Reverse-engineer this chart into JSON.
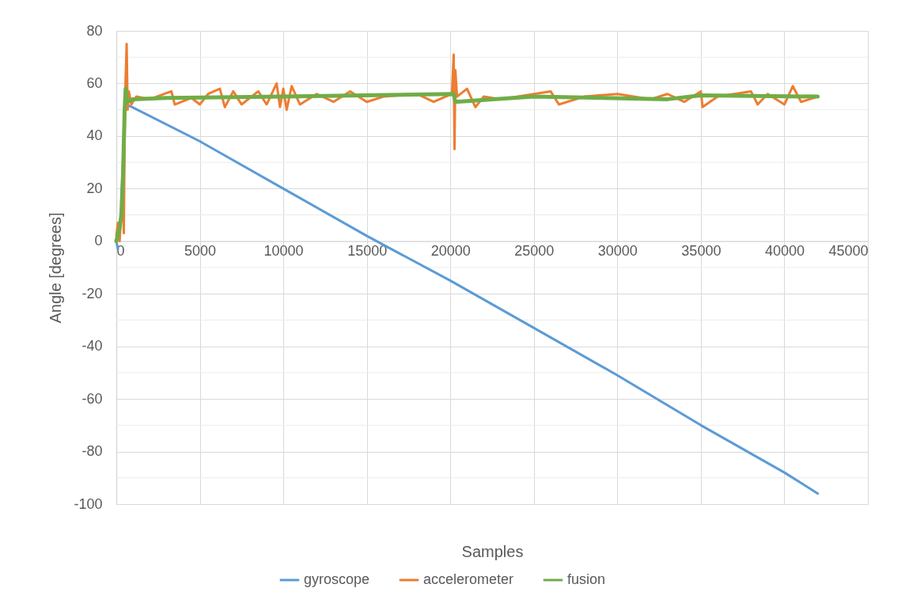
{
  "chart_data": {
    "type": "line",
    "xlabel": "Samples",
    "ylabel": "Angle [degrees]",
    "xlim": [
      0,
      45000
    ],
    "xticks": [
      0,
      5000,
      10000,
      15000,
      20000,
      25000,
      30000,
      35000,
      40000,
      45000
    ],
    "ylim": [
      -100,
      80
    ],
    "yticks": [
      -100,
      {
        "value": -90,
        "label": null
      },
      -80,
      {
        "value": -70,
        "label": null
      },
      -60,
      {
        "value": -50,
        "label": null
      },
      -40,
      {
        "value": -30,
        "label": null
      },
      -20,
      {
        "value": -10,
        "label": null
      },
      0,
      {
        "value": 10,
        "label": null
      },
      20,
      {
        "value": 30,
        "label": null
      },
      40,
      {
        "value": 50,
        "label": null
      },
      60,
      {
        "value": 70,
        "label": null
      },
      80
    ],
    "grid": true,
    "legend": "bottom",
    "line_style": "solid",
    "marker": "none",
    "series": [
      {
        "name": "gyroscope",
        "color": "#5b9bd5",
        "x": [
          0,
          100,
          200,
          300,
          400,
          500,
          600,
          950,
          5000,
          10000,
          15000,
          20000,
          25000,
          30000,
          35000,
          40000,
          42000
        ],
        "values": [
          0,
          -3,
          null,
          15,
          30,
          null,
          52,
          51,
          38,
          20,
          2,
          -15,
          -33,
          -51,
          -70,
          -88,
          -96
        ]
      },
      {
        "name": "accelerometer",
        "color": "#ed7d31",
        "x": [
          0,
          100,
          200,
          300,
          400,
          450,
          500,
          550,
          620,
          680,
          750,
          900,
          1200,
          2000,
          3300,
          3500,
          4500,
          5000,
          5500,
          6200,
          6500,
          7000,
          7500,
          8500,
          9000,
          9600,
          9800,
          10000,
          10200,
          10500,
          11000,
          12000,
          13000,
          14000,
          15000,
          16000,
          18000,
          19000,
          20100,
          20200,
          20250,
          20300,
          20400,
          21000,
          21500,
          22000,
          23000,
          26000,
          26500,
          28000,
          30000,
          32000,
          33000,
          34000,
          35000,
          35100,
          36000,
          38000,
          38400,
          39000,
          40000,
          40500,
          41000,
          42000
        ],
        "values": [
          2,
          7,
          0,
          12,
          20,
          3,
          40,
          60,
          75,
          50,
          57,
          52,
          55,
          54,
          57,
          52,
          54.5,
          52,
          56,
          58,
          51,
          57,
          52,
          57,
          52,
          60,
          51,
          58,
          50,
          59,
          52,
          56,
          53,
          57,
          53,
          55,
          56,
          53,
          56,
          71,
          35,
          65,
          55,
          58,
          51,
          55,
          54,
          57,
          52,
          55,
          56,
          54,
          56,
          53,
          57,
          51,
          55,
          57,
          52,
          56,
          52,
          59,
          53,
          55
        ]
      },
      {
        "name": "fusion",
        "color": "#70ad47",
        "x": [
          0,
          200,
          300,
          400,
          500,
          560,
          650,
          1000,
          3000,
          10000,
          20200,
          20300,
          25000,
          33000,
          35000,
          42000
        ],
        "values": [
          0,
          5,
          10,
          25,
          50,
          58,
          53,
          54,
          54.5,
          55,
          56,
          53,
          55,
          54,
          55.5,
          55
        ]
      }
    ]
  }
}
